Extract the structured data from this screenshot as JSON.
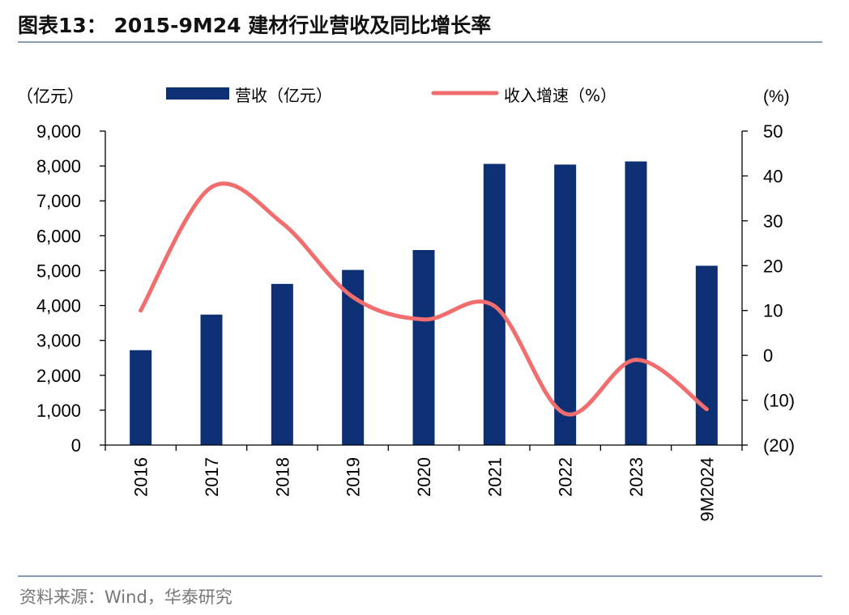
{
  "header": {
    "title": "图表13： 2015-9M24 建材行业营收及同比增长率"
  },
  "footer": {
    "source": "资料来源：Wind，华泰研究"
  },
  "chart_data": {
    "type": "bar",
    "title": "2015-9M24 建材行业营收及同比增长率",
    "categories": [
      "2016",
      "2017",
      "2018",
      "2019",
      "2020",
      "2021",
      "2022",
      "2023",
      "9M2024"
    ],
    "series": [
      {
        "name": "营收（亿元）",
        "type": "bar",
        "axis": "left",
        "color": "#0d2f73",
        "values": [
          2720,
          3740,
          4620,
          5020,
          5590,
          8060,
          8040,
          8130,
          5140
        ]
      },
      {
        "name": "收入增速（%）",
        "type": "line",
        "axis": "right",
        "color": "#f26d6d",
        "values": [
          10,
          37.5,
          29.5,
          13,
          8,
          11,
          -13,
          -1,
          -12
        ]
      }
    ],
    "left_axis": {
      "label": "（亿元）",
      "ylim": [
        0,
        9000
      ],
      "ticks": [
        0,
        1000,
        2000,
        3000,
        4000,
        5000,
        6000,
        7000,
        8000,
        9000
      ],
      "tick_labels": [
        "0",
        "1,000",
        "2,000",
        "3,000",
        "4,000",
        "5,000",
        "6,000",
        "7,000",
        "8,000",
        "9,000"
      ]
    },
    "right_axis": {
      "label": "(%)",
      "ylim": [
        -20,
        50
      ],
      "ticks": [
        -20,
        -10,
        0,
        10,
        20,
        30,
        40,
        50
      ],
      "tick_labels": [
        "(20)",
        "(10)",
        "0",
        "10",
        "20",
        "30",
        "40",
        "50"
      ]
    },
    "legend_position": "top",
    "grid": false
  }
}
